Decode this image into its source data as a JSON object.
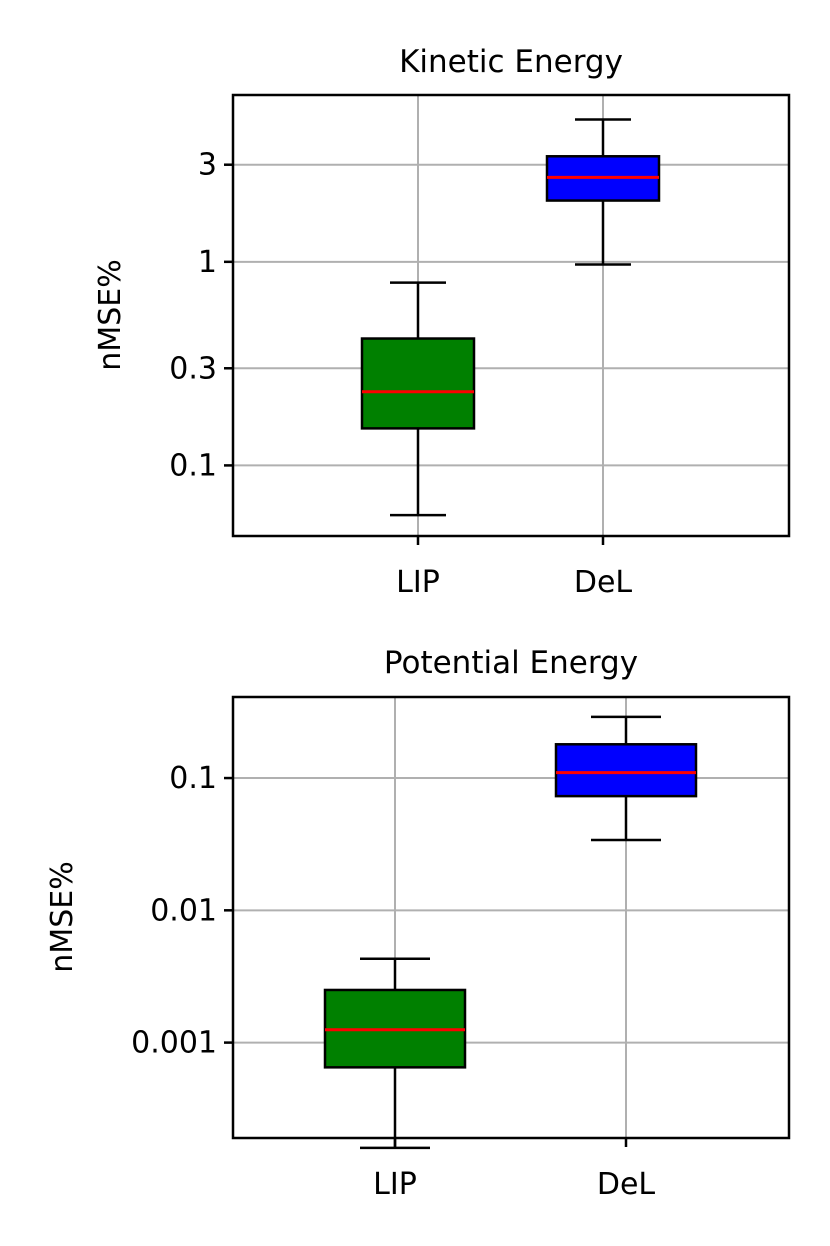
{
  "chart_data": [
    {
      "type": "box",
      "title": "Kinetic Energy",
      "ylabel": "nMSE%",
      "yscale": "log",
      "ylim": [
        0.045,
        6.6
      ],
      "yticks": [
        {
          "value": 0.1,
          "label": "0.1"
        },
        {
          "value": 0.3,
          "label": "0.3"
        },
        {
          "value": 1,
          "label": "1"
        },
        {
          "value": 3,
          "label": "3"
        }
      ],
      "categories": [
        "LIP",
        "DeL"
      ],
      "boxes": [
        {
          "name": "LIP",
          "color": "#008000",
          "whisker_low": 0.057,
          "q1": 0.152,
          "median": 0.23,
          "q3": 0.42,
          "whisker_high": 0.79
        },
        {
          "name": "DeL",
          "color": "#0000ff",
          "whisker_low": 0.97,
          "q1": 2.0,
          "median": 2.6,
          "q3": 3.3,
          "whisker_high": 5.0
        }
      ],
      "median_color": "#ff0000",
      "grid": true
    },
    {
      "type": "box",
      "title": "Potential Energy",
      "ylabel": "nMSE%",
      "yscale": "log",
      "ylim": [
        0.00019,
        0.41
      ],
      "yticks": [
        {
          "value": 0.001,
          "label": "0.001"
        },
        {
          "value": 0.01,
          "label": "0.01"
        },
        {
          "value": 0.1,
          "label": "0.1"
        }
      ],
      "categories": [
        "LIP",
        "DeL"
      ],
      "boxes": [
        {
          "name": "LIP",
          "color": "#008000",
          "whisker_low": 0.00016,
          "q1": 0.00065,
          "median": 0.00125,
          "q3": 0.0025,
          "whisker_high": 0.0043
        },
        {
          "name": "DeL",
          "color": "#0000ff",
          "whisker_low": 0.034,
          "q1": 0.073,
          "median": 0.11,
          "q3": 0.18,
          "whisker_high": 0.29
        }
      ],
      "median_color": "#ff0000",
      "grid": true
    }
  ]
}
